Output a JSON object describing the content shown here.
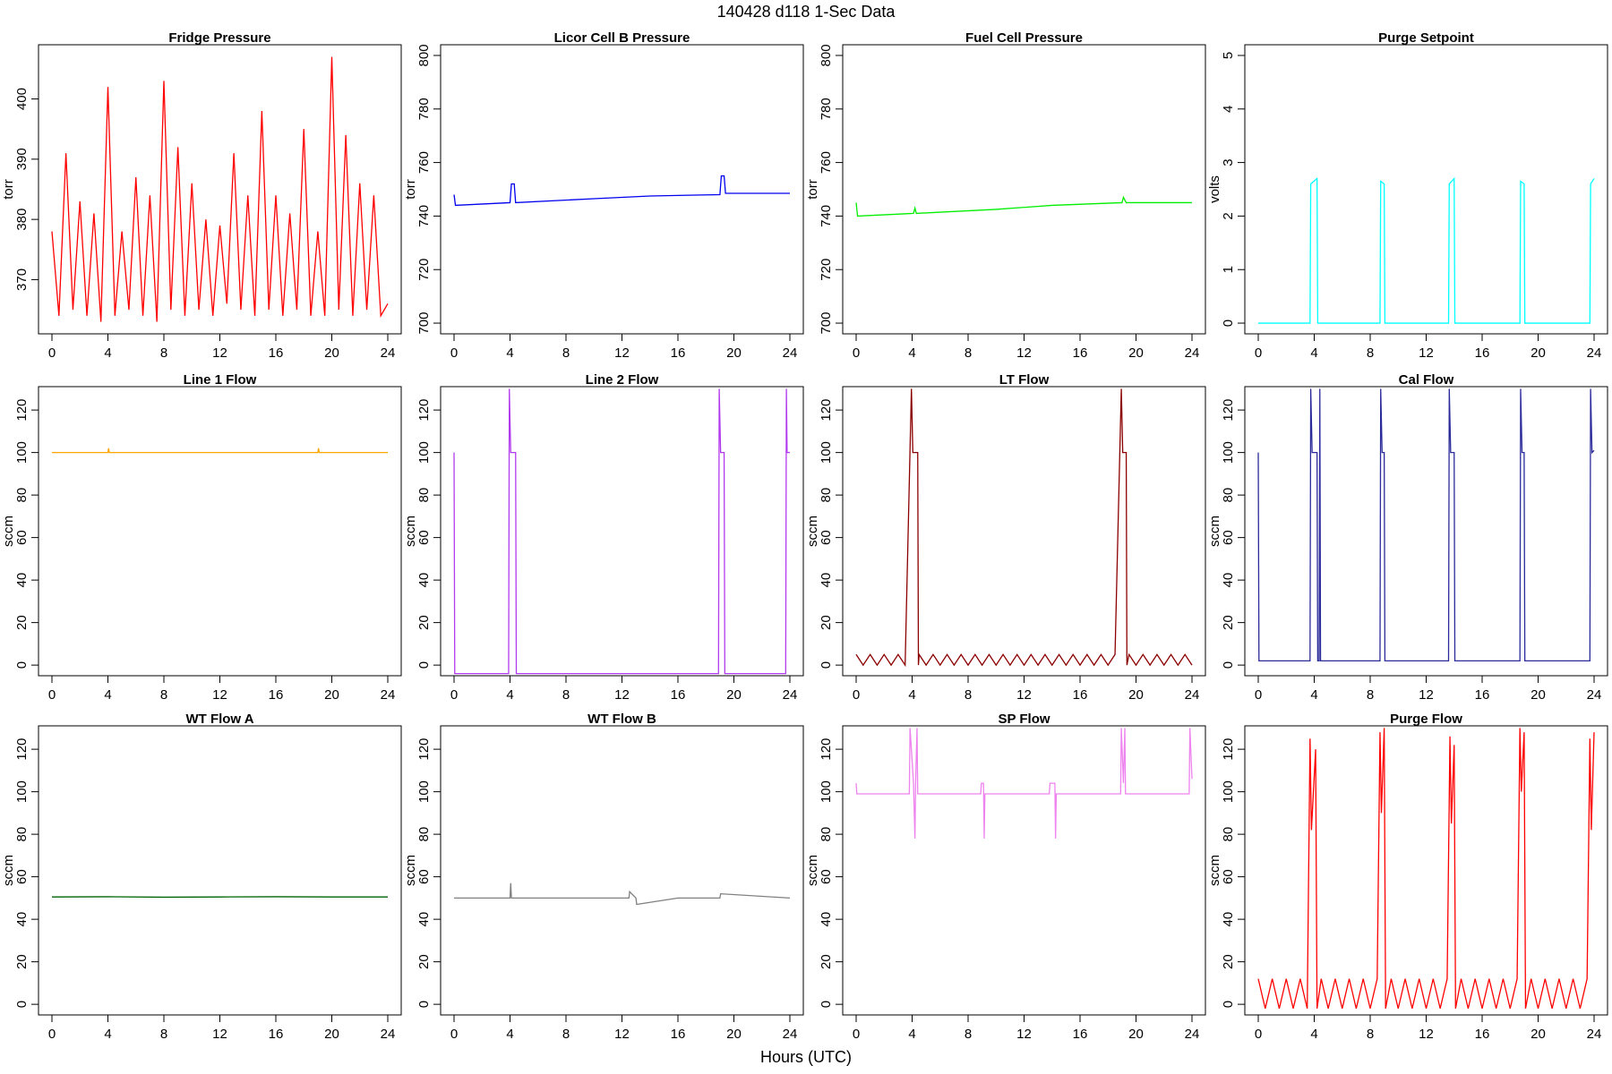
{
  "title": "140428   d118   1-Sec Data",
  "xlabel": "Hours (UTC)",
  "chart_data": [
    {
      "type": "line",
      "title": "Fridge Pressure",
      "ylabel": "torr",
      "color": "#ff0000",
      "x": [
        0,
        0.5,
        1,
        1.5,
        2,
        2.5,
        3,
        3.5,
        4,
        4.5,
        5,
        5.5,
        6,
        6.5,
        7,
        7.5,
        8,
        8.5,
        9,
        9.5,
        10,
        10.5,
        11,
        11.5,
        12,
        12.5,
        13,
        13.5,
        14,
        14.5,
        15,
        15.5,
        16,
        16.5,
        17,
        17.5,
        18,
        18.5,
        19,
        19.5,
        20,
        20.5,
        21,
        21.5,
        22,
        22.5,
        23,
        23.5,
        24
      ],
      "values": [
        378,
        364,
        391,
        365,
        383,
        364,
        381,
        363,
        402,
        364,
        378,
        365,
        387,
        364,
        384,
        363,
        403,
        365,
        392,
        364,
        386,
        365,
        380,
        364,
        379,
        366,
        391,
        365,
        384,
        364,
        398,
        365,
        384,
        364,
        381,
        365,
        395,
        364,
        378,
        364,
        407,
        365,
        394,
        364,
        386,
        365,
        384,
        364,
        366
      ],
      "xlim": [
        -0.96,
        24.96
      ],
      "xticks": [
        0,
        4,
        8,
        12,
        16,
        20,
        24
      ],
      "ylim": [
        361,
        409
      ],
      "yticks": [
        370,
        380,
        390,
        400
      ]
    },
    {
      "type": "line",
      "title": "Licor Cell B Pressure",
      "ylabel": "torr",
      "color": "#0000ee",
      "x": [
        0,
        0.1,
        4.0,
        4.1,
        4.3,
        4.4,
        10,
        14,
        19,
        19.1,
        19.3,
        19.4,
        24
      ],
      "values": [
        748,
        744,
        745,
        752,
        752,
        745,
        746.5,
        747.5,
        748,
        755,
        755,
        748.5,
        748.5
      ],
      "xlim": [
        -0.96,
        24.96
      ],
      "xticks": [
        0,
        4,
        8,
        12,
        16,
        20,
        24
      ],
      "ylim": [
        696,
        804
      ],
      "yticks": [
        700,
        720,
        740,
        760,
        780,
        800
      ]
    },
    {
      "type": "line",
      "title": "Fuel Cell Pressure",
      "ylabel": "torr",
      "color": "#00ee00",
      "x": [
        0,
        0.1,
        4.1,
        4.2,
        4.3,
        10,
        14,
        19,
        19.1,
        19.3,
        24
      ],
      "values": [
        745,
        740,
        741,
        743,
        741,
        742.5,
        744,
        745,
        747,
        745,
        745
      ],
      "xlim": [
        -0.96,
        24.96
      ],
      "xticks": [
        0,
        4,
        8,
        12,
        16,
        20,
        24
      ],
      "ylim": [
        696,
        804
      ],
      "yticks": [
        700,
        720,
        740,
        760,
        780,
        800
      ]
    },
    {
      "type": "line",
      "title": "Purge Setpoint",
      "ylabel": "volts",
      "color": "#00ffff",
      "x": [
        0,
        3.7,
        3.75,
        4.2,
        4.25,
        8.7,
        8.75,
        9,
        9.05,
        13.6,
        13.65,
        14,
        14.05,
        18.7,
        18.75,
        19,
        19.05,
        23.7,
        23.75,
        24
      ],
      "values": [
        0,
        0,
        2.6,
        2.7,
        0,
        0,
        2.65,
        2.6,
        0,
        0,
        2.6,
        2.7,
        0,
        0,
        2.65,
        2.6,
        0,
        0,
        2.6,
        2.7
      ],
      "xlim": [
        -0.96,
        24.96
      ],
      "xticks": [
        0,
        4,
        8,
        12,
        16,
        20,
        24
      ],
      "ylim": [
        -0.2,
        5.2
      ],
      "yticks": [
        0,
        1,
        2,
        3,
        4,
        5
      ]
    },
    {
      "type": "line",
      "title": "Line 1 Flow",
      "ylabel": "sccm",
      "color": "#ffa500",
      "x": [
        0,
        4,
        4.05,
        4.1,
        19,
        19.05,
        19.1,
        24
      ],
      "values": [
        100,
        100,
        102,
        100,
        100,
        102,
        100,
        100
      ],
      "xlim": [
        -0.96,
        24.96
      ],
      "xticks": [
        0,
        4,
        8,
        12,
        16,
        20,
        24
      ],
      "ylim": [
        -5,
        131
      ],
      "yticks": [
        0,
        20,
        40,
        60,
        80,
        100,
        120
      ]
    },
    {
      "type": "line",
      "title": "Line 2 Flow",
      "ylabel": "sccm",
      "color": "#b23aee",
      "x": [
        0,
        0.05,
        3.9,
        3.95,
        4.05,
        4.4,
        4.45,
        18.9,
        18.95,
        19.05,
        19.3,
        19.35,
        23.7,
        23.75,
        23.8,
        24
      ],
      "values": [
        100,
        -4,
        -4,
        130,
        100,
        100,
        -4,
        -4,
        130,
        100,
        100,
        -4,
        -4,
        130,
        100,
        100
      ],
      "xlim": [
        -0.96,
        24.96
      ],
      "xticks": [
        0,
        4,
        8,
        12,
        16,
        20,
        24
      ],
      "ylim": [
        -5,
        131
      ],
      "yticks": [
        0,
        20,
        40,
        60,
        80,
        100,
        120
      ]
    },
    {
      "type": "line",
      "title": "LT Flow",
      "ylabel": "sccm",
      "color": "#8b0000",
      "x": [
        0,
        0.5,
        1,
        1.5,
        2,
        2.5,
        3,
        3.5,
        3.95,
        4.05,
        4.4,
        4.45,
        4.5,
        5,
        5.5,
        6,
        6.5,
        7,
        7.5,
        8,
        8.5,
        9,
        9.5,
        10,
        10.5,
        11,
        11.5,
        12,
        12.5,
        13,
        13.5,
        14,
        14.5,
        15,
        15.5,
        16,
        16.5,
        17,
        17.5,
        18,
        18.5,
        18.95,
        19.05,
        19.3,
        19.35,
        19.5,
        20,
        20.5,
        21,
        21.5,
        22,
        22.5,
        23,
        23.5,
        24
      ],
      "values": [
        5,
        0,
        5,
        0,
        5,
        0,
        5,
        0,
        130,
        100,
        100,
        0,
        5,
        0,
        5,
        0,
        5,
        0,
        5,
        0,
        5,
        0,
        5,
        0,
        5,
        0,
        5,
        0,
        5,
        0,
        5,
        0,
        5,
        0,
        5,
        0,
        5,
        0,
        5,
        0,
        5,
        130,
        100,
        100,
        0,
        5,
        0,
        5,
        0,
        5,
        0,
        5,
        0,
        5,
        0
      ],
      "xlim": [
        -0.96,
        24.96
      ],
      "xticks": [
        0,
        4,
        8,
        12,
        16,
        20,
        24
      ],
      "ylim": [
        -5,
        131
      ],
      "yticks": [
        0,
        20,
        40,
        60,
        80,
        100,
        120
      ]
    },
    {
      "type": "line",
      "title": "Cal Flow",
      "ylabel": "sccm",
      "color": "#2a2a9a",
      "x": [
        0,
        0.05,
        3.7,
        3.75,
        3.85,
        4.2,
        4.25,
        4.35,
        4.4,
        4.45,
        8.7,
        8.75,
        8.85,
        9.0,
        9.05,
        13.6,
        13.65,
        13.75,
        14,
        14.05,
        18.7,
        18.75,
        18.85,
        19.0,
        19.05,
        23.7,
        23.75,
        23.85,
        24
      ],
      "values": [
        100,
        2,
        2,
        130,
        100,
        100,
        2,
        2,
        130,
        2,
        2,
        130,
        100,
        100,
        2,
        2,
        130,
        100,
        100,
        2,
        2,
        130,
        100,
        100,
        2,
        2,
        130,
        100,
        101
      ],
      "xlim": [
        -0.96,
        24.96
      ],
      "xticks": [
        0,
        4,
        8,
        12,
        16,
        20,
        24
      ],
      "ylim": [
        -5,
        131
      ],
      "yticks": [
        0,
        20,
        40,
        60,
        80,
        100,
        120
      ]
    },
    {
      "type": "line",
      "title": "WT Flow A",
      "ylabel": "sccm",
      "color": "#006400",
      "x": [
        0,
        4,
        8,
        12,
        16,
        20,
        24
      ],
      "values": [
        50.5,
        50.6,
        50.4,
        50.5,
        50.6,
        50.5,
        50.5
      ],
      "xlim": [
        -0.96,
        24.96
      ],
      "xticks": [
        0,
        4,
        8,
        12,
        16,
        20,
        24
      ],
      "ylim": [
        -5,
        131
      ],
      "yticks": [
        0,
        20,
        40,
        60,
        80,
        100,
        120
      ]
    },
    {
      "type": "line",
      "title": "WT Flow B",
      "ylabel": "sccm",
      "color": "#808080",
      "x": [
        0,
        4,
        4.05,
        4.1,
        8,
        12,
        12.5,
        12.55,
        13,
        13.05,
        16,
        19,
        19.05,
        24
      ],
      "values": [
        50,
        50,
        57,
        50,
        50,
        50,
        50,
        53,
        50,
        47,
        50,
        50,
        52,
        50
      ],
      "xlim": [
        -0.96,
        24.96
      ],
      "xticks": [
        0,
        4,
        8,
        12,
        16,
        20,
        24
      ],
      "ylim": [
        -5,
        131
      ],
      "yticks": [
        0,
        20,
        40,
        60,
        80,
        100,
        120
      ]
    },
    {
      "type": "line",
      "title": "SP Flow",
      "ylabel": "sccm",
      "color": "#ee82ee",
      "x": [
        0,
        0.05,
        3.8,
        3.85,
        4.1,
        4.2,
        4.25,
        4.35,
        4.4,
        8.9,
        8.95,
        9.1,
        9.15,
        9.2,
        13.8,
        13.85,
        14.2,
        14.25,
        14.3,
        18.9,
        18.95,
        19.1,
        19.2,
        19.25,
        23.8,
        23.85,
        24
      ],
      "values": [
        104,
        99,
        99,
        130,
        104,
        78,
        104,
        130,
        99,
        99,
        104,
        104,
        78,
        99,
        99,
        104,
        104,
        78,
        99,
        99,
        130,
        104,
        130,
        99,
        99,
        130,
        106
      ],
      "xlim": [
        -0.96,
        24.96
      ],
      "xticks": [
        0,
        4,
        8,
        12,
        16,
        20,
        24
      ],
      "ylim": [
        -5,
        131
      ],
      "yticks": [
        0,
        20,
        40,
        60,
        80,
        100,
        120
      ]
    },
    {
      "type": "line",
      "title": "Purge Flow",
      "ylabel": "sccm",
      "color": "#ff0000",
      "x": [
        0,
        0.5,
        1,
        1.5,
        2,
        2.5,
        3,
        3.5,
        3.7,
        3.8,
        4.1,
        4.2,
        4.5,
        5,
        5.5,
        6,
        6.5,
        7,
        7.5,
        8,
        8.5,
        8.7,
        8.8,
        9,
        9.1,
        9.5,
        10,
        10.5,
        11,
        11.5,
        12,
        12.5,
        13,
        13.5,
        13.7,
        13.8,
        14,
        14.1,
        14.5,
        15,
        15.5,
        16,
        16.5,
        17,
        17.5,
        18,
        18.5,
        18.7,
        18.8,
        19,
        19.1,
        19.5,
        20,
        20.5,
        21,
        21.5,
        22,
        22.5,
        23,
        23.5,
        23.7,
        23.8,
        24
      ],
      "values": [
        12,
        -2,
        12,
        -2,
        12,
        -2,
        12,
        -2,
        125,
        82,
        120,
        -2,
        12,
        -2,
        12,
        -2,
        12,
        -2,
        12,
        -2,
        12,
        128,
        90,
        130,
        -2,
        12,
        -2,
        12,
        -2,
        12,
        -2,
        12,
        -2,
        12,
        126,
        85,
        122,
        -2,
        12,
        -2,
        12,
        -2,
        12,
        -2,
        12,
        -2,
        12,
        130,
        100,
        128,
        -2,
        12,
        -2,
        12,
        -2,
        12,
        -2,
        12,
        -2,
        12,
        125,
        82,
        128
      ],
      "xlim": [
        -0.96,
        24.96
      ],
      "xticks": [
        0,
        4,
        8,
        12,
        16,
        20,
        24
      ],
      "ylim": [
        -5,
        131
      ],
      "yticks": [
        0,
        20,
        40,
        60,
        80,
        100,
        120
      ]
    }
  ]
}
